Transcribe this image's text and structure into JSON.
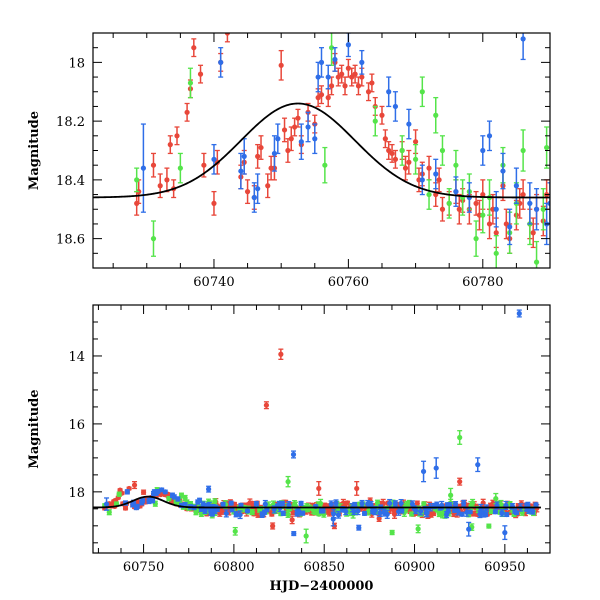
{
  "chart_data": [
    {
      "id": "top",
      "type": "scatter",
      "title": "",
      "xlabel": "",
      "ylabel": "Magnitude",
      "xlim": [
        60722,
        60790
      ],
      "ylim": [
        18.7,
        17.9
      ],
      "x_ticks": [
        60740,
        60760,
        60780
      ],
      "y_ticks": [
        18.0,
        18.2,
        18.4,
        18.6
      ],
      "x_tick_labels": [
        "60740",
        "60760",
        "60780"
      ],
      "y_tick_labels": [
        "18",
        "18.2",
        "18.4",
        "18.6"
      ],
      "model_curve": {
        "baseline": 18.46,
        "amplitude": 0.32,
        "peak_x": 60752.5,
        "width": 12
      },
      "series": [
        {
          "name": "red",
          "color": "#e8473a",
          "points": [
            [
              60728.5,
              18.48,
              0.04
            ],
            [
              60728.8,
              18.44,
              0.04
            ],
            [
              60731,
              18.35,
              0.04
            ],
            [
              60732,
              18.42,
              0.04
            ],
            [
              60733,
              18.4,
              0.04
            ],
            [
              60733.5,
              18.28,
              0.03
            ],
            [
              60734,
              18.43,
              0.03
            ],
            [
              60734.5,
              18.25,
              0.03
            ],
            [
              60736,
              18.17,
              0.03
            ],
            [
              60736.5,
              18.09,
              0.03
            ],
            [
              60737,
              17.95,
              0.03
            ],
            [
              60738,
              18.04,
              0.03
            ],
            [
              60738.5,
              18.35,
              0.04
            ],
            [
              60740,
              18.48,
              0.04
            ],
            [
              60740.5,
              18.34,
              0.04
            ],
            [
              60741,
              18.0,
              0.03
            ],
            [
              60742,
              17.9,
              0.03
            ],
            [
              60744,
              18.39,
              0.04
            ],
            [
              60744.5,
              18.34,
              0.04
            ],
            [
              60745,
              18.44,
              0.04
            ],
            [
              60746,
              18.46,
              0.04
            ],
            [
              60746.5,
              18.32,
              0.04
            ],
            [
              60747,
              18.29,
              0.04
            ],
            [
              60748,
              18.42,
              0.04
            ],
            [
              60748.5,
              18.36,
              0.04
            ],
            [
              60749,
              18.36,
              0.04
            ],
            [
              60750,
              18.01,
              0.05
            ],
            [
              60750.5,
              18.23,
              0.04
            ],
            [
              60751,
              18.3,
              0.04
            ],
            [
              60751.5,
              18.26,
              0.04
            ],
            [
              60752,
              18.22,
              0.03
            ],
            [
              60752.5,
              18.19,
              0.03
            ],
            [
              60753,
              18.28,
              0.03
            ],
            [
              60754,
              18.17,
              0.03
            ],
            [
              60755,
              18.21,
              0.03
            ],
            [
              60755.5,
              18.12,
              0.03
            ],
            [
              60756,
              18.11,
              0.03
            ],
            [
              60757,
              18.12,
              0.03
            ],
            [
              60757.5,
              18.08,
              0.03
            ],
            [
              60758,
              18.0,
              0.03
            ],
            [
              60758.5,
              18.05,
              0.03
            ],
            [
              60759,
              18.04,
              0.03
            ],
            [
              60759.5,
              18.08,
              0.03
            ],
            [
              60760,
              18.02,
              0.03
            ],
            [
              60760.5,
              18.05,
              0.03
            ],
            [
              60761,
              18.04,
              0.03
            ],
            [
              60761.5,
              18.08,
              0.03
            ],
            [
              60762,
              18.05,
              0.03
            ],
            [
              60763,
              18.1,
              0.03
            ],
            [
              60763.5,
              18.07,
              0.03
            ],
            [
              60764,
              18.15,
              0.03
            ],
            [
              60765,
              18.18,
              0.03
            ],
            [
              60765.5,
              18.26,
              0.03
            ],
            [
              60766,
              18.3,
              0.03
            ],
            [
              60766.5,
              18.31,
              0.03
            ],
            [
              60767,
              18.33,
              0.03
            ],
            [
              60768,
              18.3,
              0.03
            ],
            [
              60768.5,
              18.36,
              0.04
            ],
            [
              60769,
              18.34,
              0.04
            ],
            [
              60770,
              18.27,
              0.04
            ],
            [
              60770.5,
              18.4,
              0.04
            ],
            [
              60771,
              18.38,
              0.04
            ],
            [
              60772,
              18.36,
              0.04
            ],
            [
              60773,
              18.45,
              0.04
            ],
            [
              60773.5,
              18.4,
              0.04
            ],
            [
              60774,
              18.5,
              0.04
            ],
            [
              60775,
              18.48,
              0.04
            ],
            [
              60776,
              18.44,
              0.04
            ],
            [
              60776.5,
              18.5,
              0.05
            ],
            [
              60777,
              18.47,
              0.04
            ],
            [
              60778,
              18.5,
              0.05
            ],
            [
              60779,
              18.48,
              0.04
            ],
            [
              60779.5,
              18.52,
              0.05
            ],
            [
              60780,
              18.45,
              0.05
            ],
            [
              60781,
              18.55,
              0.05
            ],
            [
              60781.5,
              18.5,
              0.05
            ],
            [
              60782,
              18.58,
              0.05
            ],
            [
              60783,
              18.42,
              0.05
            ],
            [
              60783.5,
              18.55,
              0.05
            ],
            [
              60784,
              18.6,
              0.05
            ],
            [
              60785,
              18.52,
              0.05
            ],
            [
              60785.5,
              18.48,
              0.05
            ],
            [
              60786,
              18.45,
              0.05
            ],
            [
              60787,
              18.55,
              0.05
            ],
            [
              60787.5,
              18.58,
              0.05
            ],
            [
              60788,
              18.5,
              0.05
            ],
            [
              60789,
              18.54,
              0.05
            ],
            [
              60789.5,
              18.45,
              0.05
            ]
          ]
        },
        {
          "name": "green",
          "color": "#55e44a",
          "points": [
            [
              60728.5,
              18.4,
              0.04
            ],
            [
              60731,
              18.6,
              0.06
            ],
            [
              60735,
              18.36,
              0.05
            ],
            [
              60736.5,
              18.07,
              0.05
            ],
            [
              60756.5,
              18.35,
              0.06
            ],
            [
              60757.5,
              17.95,
              0.06
            ],
            [
              60764,
              18.2,
              0.05
            ],
            [
              60768,
              18.3,
              0.05
            ],
            [
              60770,
              18.33,
              0.05
            ],
            [
              60771,
              18.1,
              0.05
            ],
            [
              60772,
              18.45,
              0.05
            ],
            [
              60773,
              18.18,
              0.06
            ],
            [
              60774,
              18.3,
              0.05
            ],
            [
              60775,
              18.48,
              0.05
            ],
            [
              60776,
              18.35,
              0.05
            ],
            [
              60777,
              18.46,
              0.06
            ],
            [
              60778,
              18.44,
              0.06
            ],
            [
              60779,
              18.6,
              0.06
            ],
            [
              60780,
              18.52,
              0.06
            ],
            [
              60781,
              18.46,
              0.06
            ],
            [
              60782,
              18.65,
              0.06
            ],
            [
              60783,
              18.35,
              0.06
            ],
            [
              60784,
              18.58,
              0.07
            ],
            [
              60785,
              18.48,
              0.07
            ],
            [
              60786,
              18.3,
              0.07
            ],
            [
              60787,
              18.55,
              0.07
            ],
            [
              60788,
              18.68,
              0.07
            ],
            [
              60789,
              18.5,
              0.07
            ],
            [
              60789.5,
              18.29,
              0.07
            ]
          ]
        },
        {
          "name": "blue",
          "color": "#2f6ee8",
          "points": [
            [
              60729.5,
              18.36,
              0.15
            ],
            [
              60740,
              18.33,
              0.05
            ],
            [
              60741,
              18.0,
              0.05
            ],
            [
              60744,
              18.37,
              0.06
            ],
            [
              60744.5,
              18.32,
              0.06
            ],
            [
              60746,
              18.46,
              0.05
            ],
            [
              60746.5,
              18.43,
              0.05
            ],
            [
              60749,
              18.31,
              0.06
            ],
            [
              60749.5,
              18.26,
              0.05
            ],
            [
              60753,
              18.27,
              0.06
            ],
            [
              60754,
              18.22,
              0.05
            ],
            [
              60755,
              18.26,
              0.05
            ],
            [
              60755.5,
              18.05,
              0.05
            ],
            [
              60756,
              18.0,
              0.05
            ],
            [
              60757,
              18.05,
              0.04
            ],
            [
              60758,
              17.99,
              0.04
            ],
            [
              60760,
              17.94,
              0.04
            ],
            [
              60762,
              18.0,
              0.04
            ],
            [
              60766,
              18.1,
              0.05
            ],
            [
              60767,
              18.15,
              0.05
            ],
            [
              60769,
              18.21,
              0.05
            ],
            [
              60771,
              18.4,
              0.05
            ],
            [
              60773,
              18.38,
              0.05
            ],
            [
              60776,
              18.44,
              0.05
            ],
            [
              60778,
              18.46,
              0.05
            ],
            [
              60780,
              18.3,
              0.05
            ],
            [
              60781,
              18.25,
              0.05
            ],
            [
              60782,
              18.5,
              0.06
            ],
            [
              60783,
              18.37,
              0.06
            ],
            [
              60784,
              18.56,
              0.06
            ],
            [
              60785,
              18.42,
              0.06
            ],
            [
              60786,
              17.92,
              0.07
            ],
            [
              60787,
              18.48,
              0.07
            ],
            [
              60788,
              18.5,
              0.07
            ],
            [
              60789.5,
              18.55,
              0.07
            ],
            [
              60790,
              18.48,
              0.07
            ]
          ]
        }
      ]
    },
    {
      "id": "bottom",
      "type": "scatter",
      "title": "",
      "xlabel": "HJD−2400000",
      "ylabel": "Magnitude",
      "xlim": [
        60722,
        60975
      ],
      "ylim": [
        19.8,
        12.5
      ],
      "x_ticks": [
        60750,
        60800,
        60850,
        60900,
        60950
      ],
      "y_ticks": [
        14,
        16,
        18
      ],
      "x_tick_labels": [
        "60750",
        "60800",
        "60850",
        "60900",
        "60950"
      ],
      "y_tick_labels": [
        "14",
        "16",
        "18"
      ],
      "model_curve": {
        "baseline": 18.46,
        "amplitude": 0.32,
        "peak_x": 60752.5,
        "width": 12,
        "xmax": 60970
      },
      "series": [
        {
          "name": "red",
          "color": "#e8473a",
          "points": [
            [
              60818,
              15.45,
              0.1
            ],
            [
              60826,
              13.95,
              0.15
            ],
            [
              60847,
              17.9,
              0.2
            ],
            [
              60868,
              17.9,
              0.2
            ],
            [
              60925,
              17.7,
              0.1
            ],
            [
              60730,
              18.42,
              0.05
            ],
            [
              60745,
              17.8,
              0.1
            ],
            [
              60760,
              18.0,
              0.1
            ],
            [
              60790,
              18.3,
              0.1
            ]
          ]
        },
        {
          "name": "green",
          "color": "#55e44a",
          "points": [
            [
              60830,
              17.7,
              0.15
            ],
            [
              60920,
              18.1,
              0.2
            ],
            [
              60925,
              16.4,
              0.2
            ],
            [
              60840,
              19.3,
              0.2
            ],
            [
              60945,
              18.2,
              0.15
            ],
            [
              60770,
              18.3,
              0.1
            ]
          ]
        },
        {
          "name": "blue",
          "color": "#2f6ee8",
          "points": [
            [
              60958,
              12.75,
              0.1
            ],
            [
              60905,
              17.4,
              0.3
            ],
            [
              60912,
              17.3,
              0.3
            ],
            [
              60935,
              17.2,
              0.2
            ],
            [
              60833,
              16.9,
              0.1
            ],
            [
              60930,
              19.1,
              0.2
            ],
            [
              60950,
              19.2,
              0.2
            ],
            [
              60855,
              18.8,
              0.2
            ]
          ]
        }
      ]
    }
  ]
}
